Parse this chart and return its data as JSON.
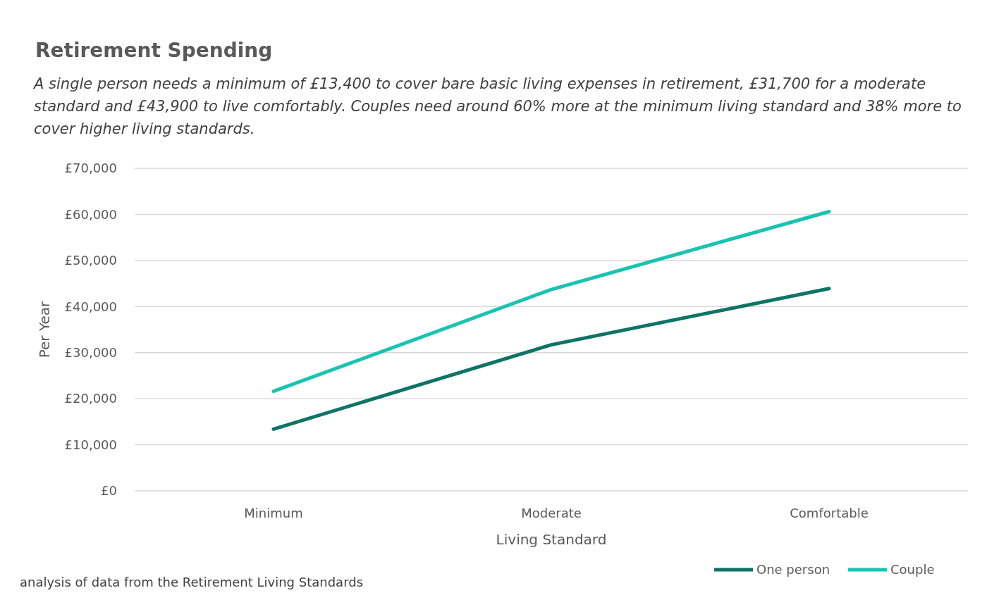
{
  "chart_data": {
    "type": "line",
    "title": "Retirement Spending",
    "subtitle": "A single person needs a minimum of £13,400 to cover bare basic living expenses in retirement, £31,700 for a moderate standard and £43,900 to live comfortably. Couples need around 60% more at the minimum living standard and 38% more to cover higher living standards.",
    "xlabel": "Living Standard",
    "ylabel": "Per Year",
    "categories": [
      "Minimum",
      "Moderate",
      "Comfortable"
    ],
    "series": [
      {
        "name": "One person",
        "color": "#0e7466",
        "values": [
          13400,
          31700,
          43900
        ]
      },
      {
        "name": "Couple",
        "color": "#19c3b2",
        "values": [
          21600,
          43700,
          60600
        ]
      }
    ],
    "ylim": [
      0,
      70000
    ],
    "yticks": [
      {
        "value": 0,
        "label": "£0"
      },
      {
        "value": 10000,
        "label": "£10,000"
      },
      {
        "value": 20000,
        "label": "£20,000"
      },
      {
        "value": 30000,
        "label": "£30,000"
      },
      {
        "value": 40000,
        "label": "£40,000"
      },
      {
        "value": 50000,
        "label": "£50,000"
      },
      {
        "value": 60000,
        "label": "£60,000"
      },
      {
        "value": 70000,
        "label": "£70,000"
      }
    ],
    "grid": "y",
    "legend": "bottom right",
    "marker": "none",
    "line_style": "solid",
    "annotations": [
      "analysis of data from the Retirement Living Standards"
    ]
  }
}
